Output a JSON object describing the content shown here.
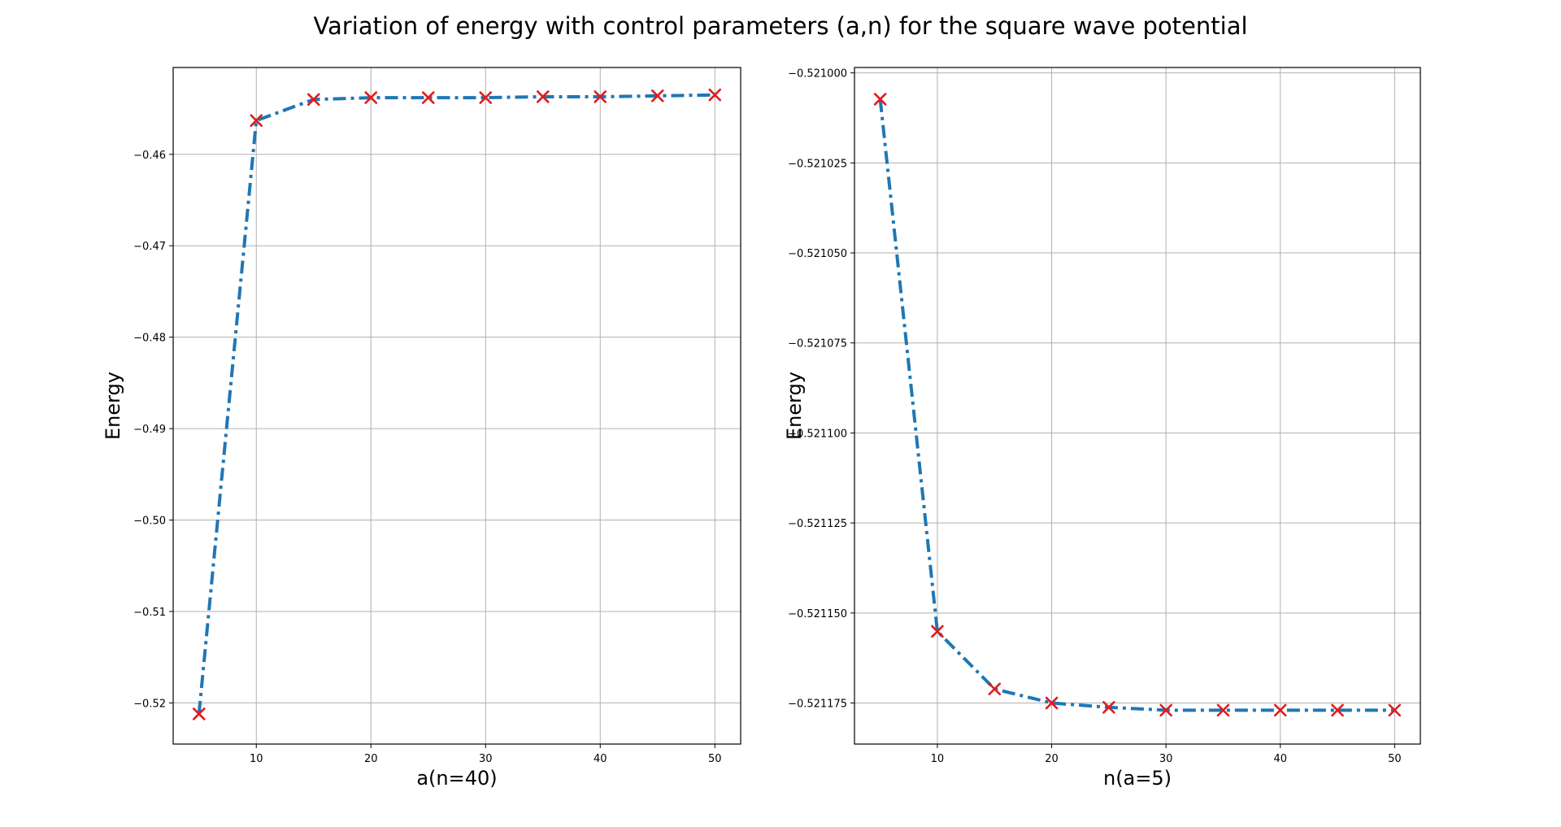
{
  "figure": {
    "suptitle": "Variation of energy with control parameters (a,n) for the square wave potential"
  },
  "colors": {
    "line": "#1f77b4",
    "marker": "#e31a1c",
    "grid": "#b0b0b0",
    "frame": "#000000"
  },
  "chart_data": [
    {
      "type": "line",
      "title": "",
      "xlabel": "a(n=40)",
      "ylabel": "Energy",
      "grid": true,
      "line_style": "dash-dot",
      "marker": "x",
      "xlim": [
        2.75,
        52.25
      ],
      "ylim": [
        -0.5245,
        -0.4505
      ],
      "xticks": [
        10,
        20,
        30,
        40,
        50
      ],
      "xtick_labels": [
        "10",
        "20",
        "30",
        "40",
        "50"
      ],
      "yticks": [
        -0.52,
        -0.51,
        -0.5,
        -0.49,
        -0.48,
        -0.47,
        -0.46
      ],
      "ytick_labels": [
        "−0.52",
        "−0.51",
        "−0.50",
        "−0.49",
        "−0.48",
        "−0.47",
        "−0.46"
      ],
      "series": [
        {
          "x": [
            5,
            10,
            15,
            20,
            25,
            30,
            35,
            40,
            45,
            50
          ],
          "y": [
            -0.5212,
            -0.4563,
            -0.454,
            -0.4538,
            -0.4538,
            -0.4538,
            -0.4537,
            -0.4537,
            -0.4536,
            -0.4535
          ]
        }
      ]
    },
    {
      "type": "line",
      "title": "",
      "xlabel": "n(a=5)",
      "ylabel": "Energy",
      "grid": true,
      "line_style": "dash-dot",
      "marker": "x",
      "xlim": [
        2.75,
        52.25
      ],
      "ylim": [
        -0.5211864,
        -0.5209985
      ],
      "xticks": [
        10,
        20,
        30,
        40,
        50
      ],
      "xtick_labels": [
        "10",
        "20",
        "30",
        "40",
        "50"
      ],
      "yticks": [
        -0.521,
        -0.521025,
        -0.52105,
        -0.521075,
        -0.5211,
        -0.521125,
        -0.52115,
        -0.521175
      ],
      "ytick_labels": [
        "−0.521000",
        "−0.521025",
        "−0.521050",
        "−0.521075",
        "−0.521100",
        "−0.521125",
        "−0.521150",
        "−0.521175"
      ],
      "series": [
        {
          "x": [
            5,
            10,
            15,
            20,
            25,
            30,
            35,
            40,
            45,
            50
          ],
          "y": [
            -0.5210073,
            -0.5211551,
            -0.5211711,
            -0.521175,
            -0.5211762,
            -0.521177,
            -0.521177,
            -0.521177,
            -0.521177,
            -0.521177
          ]
        }
      ]
    }
  ]
}
